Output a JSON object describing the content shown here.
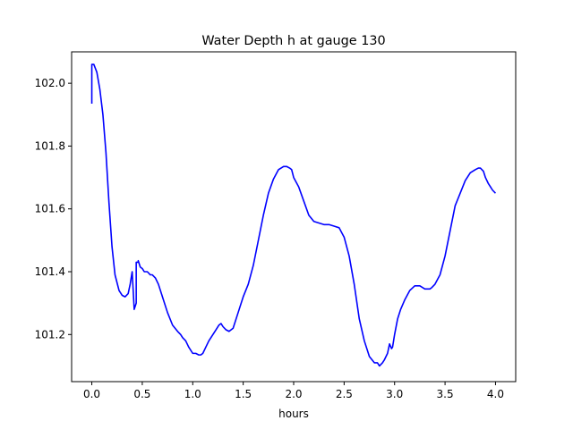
{
  "chart_data": {
    "type": "line",
    "title": "Water Depth h at gauge 130",
    "xlabel": "hours",
    "ylabel": "",
    "xlim": [
      -0.2,
      4.2
    ],
    "ylim": [
      101.05,
      102.1
    ],
    "xticks": [
      0.0,
      0.5,
      1.0,
      1.5,
      2.0,
      2.5,
      3.0,
      3.5,
      4.0
    ],
    "xtick_labels": [
      "0.0",
      "0.5",
      "1.0",
      "1.5",
      "2.0",
      "2.5",
      "3.0",
      "3.5",
      "4.0"
    ],
    "yticks": [
      101.2,
      101.4,
      101.6,
      101.8,
      102.0
    ],
    "ytick_labels": [
      "101.2",
      "101.4",
      "101.6",
      "101.8",
      "102.0"
    ],
    "grid": false,
    "series": [
      {
        "color": "#0000ff",
        "x": [
          0.0,
          0.0,
          0.02,
          0.05,
          0.08,
          0.11,
          0.14,
          0.17,
          0.2,
          0.23,
          0.27,
          0.3,
          0.33,
          0.36,
          0.38,
          0.4,
          0.42,
          0.43,
          0.44,
          0.44,
          0.46,
          0.46,
          0.48,
          0.5,
          0.52,
          0.55,
          0.58,
          0.6,
          0.63,
          0.66,
          0.7,
          0.75,
          0.8,
          0.85,
          0.88,
          0.9,
          0.93,
          0.96,
          1.0,
          1.03,
          1.06,
          1.08,
          1.1,
          1.13,
          1.16,
          1.2,
          1.23,
          1.26,
          1.28,
          1.3,
          1.33,
          1.36,
          1.4,
          1.45,
          1.5,
          1.55,
          1.6,
          1.65,
          1.7,
          1.75,
          1.8,
          1.85,
          1.9,
          1.93,
          1.96,
          1.98,
          2.0,
          2.05,
          2.1,
          2.15,
          2.2,
          2.25,
          2.3,
          2.35,
          2.4,
          2.45,
          2.5,
          2.55,
          2.6,
          2.65,
          2.7,
          2.75,
          2.8,
          2.83,
          2.85,
          2.88,
          2.9,
          2.93,
          2.95,
          2.97,
          2.98,
          3.0,
          3.03,
          3.06,
          3.1,
          3.15,
          3.2,
          3.25,
          3.3,
          3.33,
          3.35,
          3.37,
          3.4,
          3.45,
          3.5,
          3.55,
          3.6,
          3.65,
          3.7,
          3.75,
          3.8,
          3.83,
          3.85,
          3.88,
          3.9,
          3.93,
          3.95,
          3.97,
          4.0
        ],
        "y": [
          101.935,
          102.06,
          102.06,
          102.035,
          101.98,
          101.9,
          101.78,
          101.62,
          101.48,
          101.39,
          101.34,
          101.325,
          101.32,
          101.33,
          101.36,
          101.4,
          101.28,
          101.29,
          101.3,
          101.43,
          101.43,
          101.435,
          101.415,
          101.41,
          101.4,
          101.4,
          101.39,
          101.39,
          101.38,
          101.36,
          101.32,
          101.27,
          101.23,
          101.21,
          101.2,
          101.19,
          101.18,
          101.16,
          101.14,
          101.14,
          101.135,
          101.135,
          101.14,
          101.16,
          101.18,
          101.2,
          101.215,
          101.23,
          101.235,
          101.225,
          101.215,
          101.21,
          101.22,
          101.27,
          101.32,
          101.36,
          101.42,
          101.5,
          101.58,
          101.65,
          101.695,
          101.725,
          101.735,
          101.735,
          101.73,
          101.725,
          101.7,
          101.67,
          101.625,
          101.58,
          101.56,
          101.555,
          101.55,
          101.55,
          101.545,
          101.54,
          101.51,
          101.45,
          101.36,
          101.25,
          101.18,
          101.13,
          101.11,
          101.11,
          101.1,
          101.11,
          101.12,
          101.14,
          101.17,
          101.155,
          101.16,
          101.2,
          101.25,
          101.28,
          101.31,
          101.34,
          101.355,
          101.355,
          101.345,
          101.345,
          101.345,
          101.35,
          101.36,
          101.39,
          101.45,
          101.53,
          101.61,
          101.65,
          101.69,
          101.715,
          101.725,
          101.73,
          101.73,
          101.72,
          101.7,
          101.68,
          101.67,
          101.66,
          101.65
        ]
      }
    ]
  }
}
